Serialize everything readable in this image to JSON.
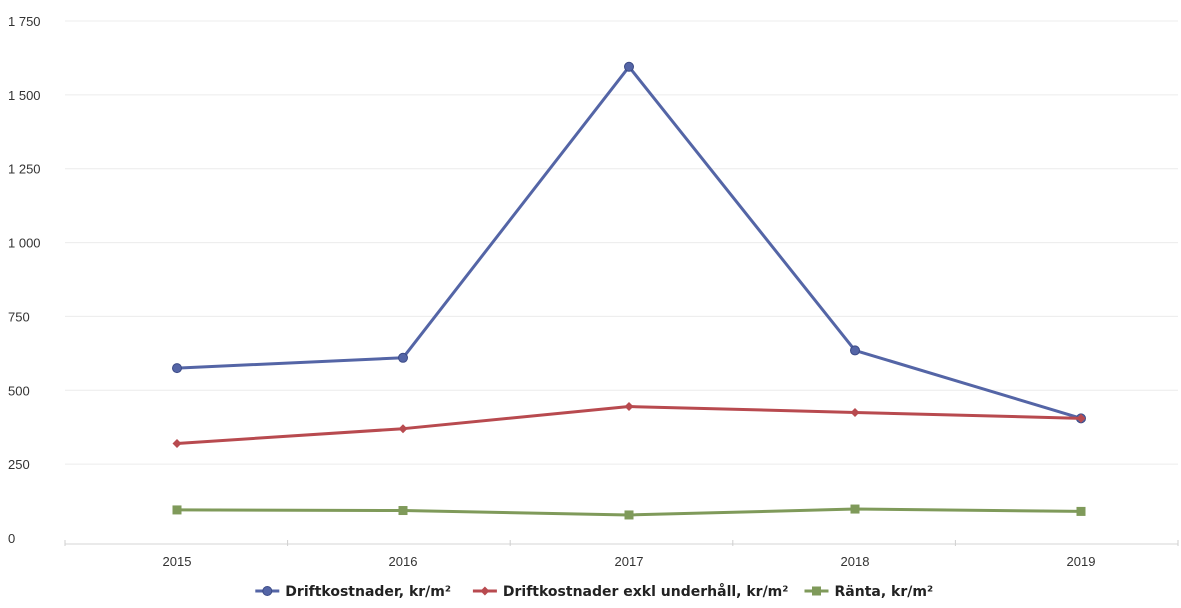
{
  "chart_data": {
    "type": "line",
    "categories": [
      "2015",
      "2016",
      "2017",
      "2018",
      "2019"
    ],
    "y_ticks": [
      "0",
      "250",
      "500",
      "750",
      "1 000",
      "1 250",
      "1 500",
      "1 750"
    ],
    "ylim": [
      0,
      1750
    ],
    "grid": true,
    "legend_position": "bottom",
    "series": [
      {
        "name": "Driftkostnader, kr/m²",
        "values": [
          575,
          610,
          1595,
          635,
          405
        ],
        "color": "#5465a6",
        "marker": "circle"
      },
      {
        "name": "Driftkostnader exkl underhåll, kr/m²",
        "values": [
          320,
          370,
          445,
          425,
          405
        ],
        "color": "#b84a4f",
        "marker": "diamond"
      },
      {
        "name": "Ränta, kr/m²",
        "values": [
          95,
          93,
          78,
          98,
          90
        ],
        "color": "#7f9a5a",
        "marker": "square"
      }
    ]
  }
}
